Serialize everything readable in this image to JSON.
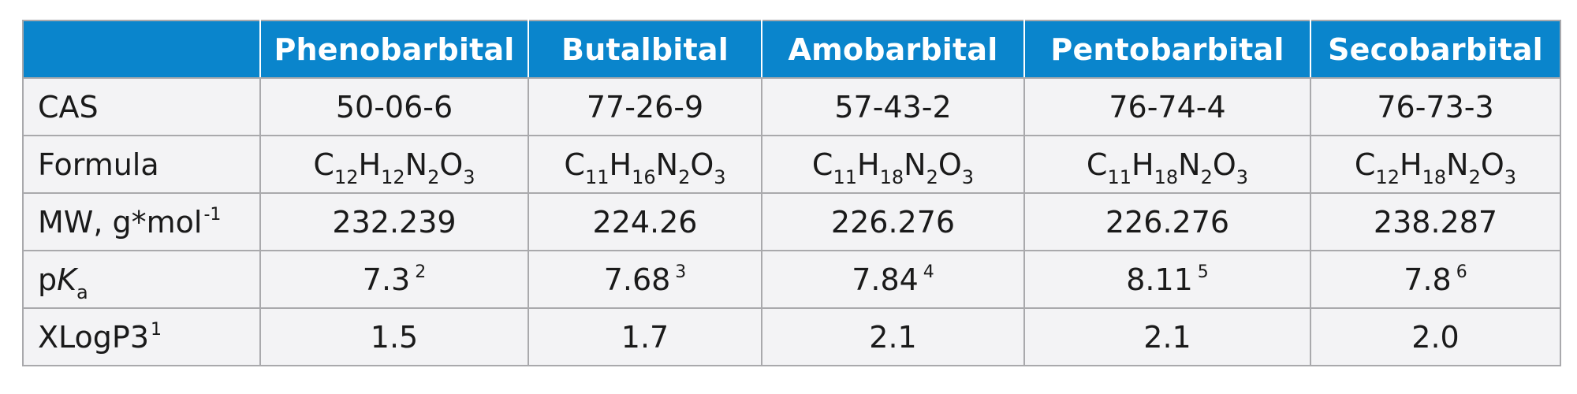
{
  "table": {
    "header": [
      "",
      "Phenobarbital",
      "Butalbital",
      "Amobarbital",
      "Pentobarbital",
      "Secobarbital"
    ],
    "rows": {
      "cas": {
        "label": "CAS",
        "values": [
          "50-06-6",
          "77-26-9",
          "57-43-2",
          "76-74-4",
          "76-73-3"
        ]
      },
      "formula": {
        "label": "Formula",
        "values": [
          [
            [
              "C",
              "12"
            ],
            [
              "H",
              "12"
            ],
            [
              "N",
              "2"
            ],
            [
              "O",
              "3"
            ]
          ],
          [
            [
              "C",
              "11"
            ],
            [
              "H",
              "16"
            ],
            [
              "N",
              "2"
            ],
            [
              "O",
              "3"
            ]
          ],
          [
            [
              "C",
              "11"
            ],
            [
              "H",
              "18"
            ],
            [
              "N",
              "2"
            ],
            [
              "O",
              "3"
            ]
          ],
          [
            [
              "C",
              "11"
            ],
            [
              "H",
              "18"
            ],
            [
              "N",
              "2"
            ],
            [
              "O",
              "3"
            ]
          ],
          [
            [
              "C",
              "12"
            ],
            [
              "H",
              "18"
            ],
            [
              "N",
              "2"
            ],
            [
              "O",
              "3"
            ]
          ]
        ]
      },
      "mw": {
        "label": "MW, g*mol",
        "label_sup": "-1",
        "values": [
          "232.239",
          "224.26",
          "226.276",
          "226.276",
          "238.287"
        ]
      },
      "pka": {
        "label_p": "p",
        "label_k": "K",
        "label_sub": "a",
        "values": [
          "7.3",
          "7.68",
          "7.84",
          "8.11",
          "7.8"
        ],
        "refs": [
          "2",
          "3",
          "4",
          "5",
          "6"
        ]
      },
      "xlogp3": {
        "label": "XLogP3",
        "label_sup": "1",
        "values": [
          "1.5",
          "1.7",
          "2.1",
          "2.1",
          "2.0"
        ]
      }
    }
  }
}
